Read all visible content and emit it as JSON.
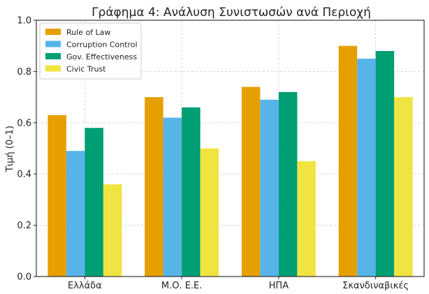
{
  "chart_data": {
    "type": "bar",
    "title": "Γράφημα 4: Ανάλυση Συνιστωσών ανά Περιοχή",
    "xlabel": "",
    "ylabel": "Τιμή (0–1)",
    "ylim": [
      0,
      1.0
    ],
    "yticks": [
      0.0,
      0.2,
      0.4,
      0.6,
      0.8,
      1.0
    ],
    "ytick_labels": [
      "0.0",
      "0.2",
      "0.4",
      "0.6",
      "0.8",
      "1.0"
    ],
    "grid": true,
    "legend_position": "top-left",
    "categories": [
      "Ελλάδα",
      "Μ.Ο. Ε.Ε.",
      "ΗΠΑ",
      "Σκανδιναβικές"
    ],
    "series": [
      {
        "name": "Rule of Law",
        "color": "#E69F00",
        "values": [
          0.63,
          0.7,
          0.74,
          0.9
        ]
      },
      {
        "name": "Corruption Control",
        "color": "#56B4E9",
        "values": [
          0.49,
          0.62,
          0.69,
          0.85
        ]
      },
      {
        "name": "Gov. Effectiveness",
        "color": "#009E73",
        "values": [
          0.58,
          0.66,
          0.72,
          0.88
        ]
      },
      {
        "name": "Civic Trust",
        "color": "#F0E442",
        "values": [
          0.36,
          0.5,
          0.45,
          0.7
        ]
      }
    ]
  }
}
